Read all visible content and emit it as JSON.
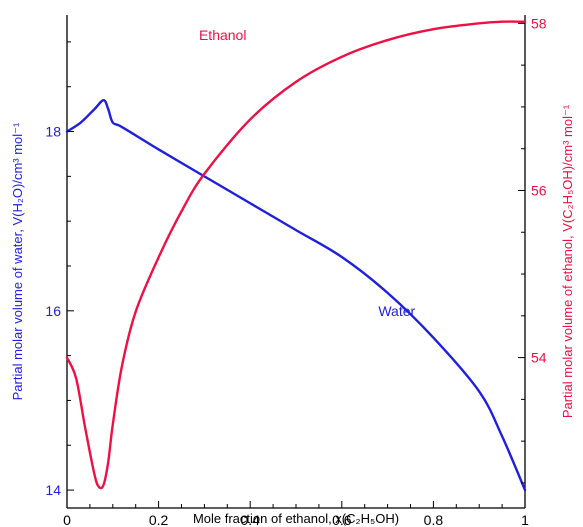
{
  "chart_data": {
    "type": "line",
    "xlabel": "Mole fraction of ethanol, x(C₂H₅OH)",
    "ylabel_left": "Partial molar volume of water, V(H₂O)/cm³ mol⁻¹",
    "ylabel_right": "Partial molar volume of ethanol, V(C₂H₅OH)/cm³ mol⁻¹",
    "xlim": [
      0,
      1
    ],
    "ylim_left": [
      13.8,
      19.3
    ],
    "ylim_right": [
      52.2,
      58.1
    ],
    "x_ticks": [
      "0",
      "0.2",
      "0.4",
      "0.6",
      "0.8",
      "1"
    ],
    "y_ticks_left": [
      "14",
      "16",
      "18"
    ],
    "y_ticks_right": [
      "54",
      "56",
      "58"
    ],
    "grid": false,
    "colors": {
      "water": "#1f1fe0",
      "ethanol": "#ee1044",
      "axis": "#000000",
      "left_tick_labels": "#1f1fe0",
      "right_tick_labels": "#ee1044"
    },
    "series": [
      {
        "name": "Water",
        "axis": "left",
        "x": [
          0,
          0.03,
          0.06,
          0.08,
          0.09,
          0.1,
          0.12,
          0.2,
          0.3,
          0.4,
          0.5,
          0.6,
          0.7,
          0.8,
          0.9,
          0.95,
          1.0
        ],
        "y": [
          18.0,
          18.1,
          18.25,
          18.35,
          18.25,
          18.1,
          18.05,
          17.8,
          17.5,
          17.2,
          16.9,
          16.6,
          16.2,
          15.7,
          15.1,
          14.6,
          14.0
        ]
      },
      {
        "name": "Ethanol",
        "axis": "right",
        "x": [
          0,
          0.02,
          0.04,
          0.06,
          0.07,
          0.08,
          0.09,
          0.1,
          0.12,
          0.15,
          0.2,
          0.25,
          0.3,
          0.4,
          0.5,
          0.6,
          0.7,
          0.8,
          0.9,
          0.95,
          1.0
        ],
        "y": [
          54.0,
          53.75,
          53.15,
          52.6,
          52.45,
          52.48,
          52.75,
          53.2,
          53.9,
          54.55,
          55.2,
          55.75,
          56.2,
          56.85,
          57.3,
          57.6,
          57.8,
          57.93,
          58.0,
          58.02,
          58.02
        ]
      }
    ]
  }
}
